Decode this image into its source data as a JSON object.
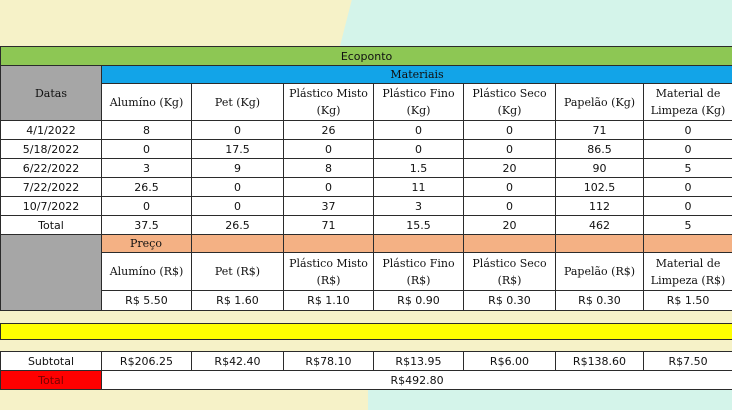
{
  "title": "Ecoponto",
  "materials_header": "Materiais",
  "dates_header": "Datas",
  "quantity_columns": [
    "Alumíno (Kg)",
    "Pet (Kg)",
    "Plástico Misto (Kg)",
    "Plástico Fino (Kg)",
    "Plástico Seco (Kg)",
    "Papelão (Kg)",
    "Material de Limpeza (Kg)"
  ],
  "rows": [
    {
      "date": "4/1/2022",
      "values": [
        "8",
        "0",
        "26",
        "0",
        "0",
        "71",
        "0"
      ]
    },
    {
      "date": "5/18/2022",
      "values": [
        "0",
        "17.5",
        "0",
        "0",
        "0",
        "86.5",
        "0"
      ]
    },
    {
      "date": "6/22/2022",
      "values": [
        "3",
        "9",
        "8",
        "1.5",
        "20",
        "90",
        "5"
      ]
    },
    {
      "date": "7/22/2022",
      "values": [
        "26.5",
        "0",
        "0",
        "11",
        "0",
        "102.5",
        "0"
      ]
    },
    {
      "date": "10/7/2022",
      "values": [
        "0",
        "0",
        "37",
        "3",
        "0",
        "112",
        "0"
      ]
    }
  ],
  "total_row": {
    "label": "Total",
    "values": [
      "37.5",
      "26.5",
      "71",
      "15.5",
      "20",
      "462",
      "5"
    ]
  },
  "price_header": "Preço",
  "price_columns": [
    "Alumíno (R$)",
    "Pet (R$)",
    "Plástico Misto (R$)",
    "Plástico Fino (R$)",
    "Plástico Seco (R$)",
    "Papelão (R$)",
    "Material de Limpeza (R$)"
  ],
  "prices": [
    "R$ 5.50",
    "R$ 1.60",
    "R$ 1.10",
    "R$ 0.90",
    "R$ 0.30",
    "R$ 0.30",
    "R$ 1.50"
  ],
  "subtotal": {
    "label": "Subtotal",
    "values": [
      "R$206.25",
      "R$42.40",
      "R$78.10",
      "R$13.95",
      "R$6.00",
      "R$138.60",
      "R$7.50"
    ]
  },
  "grand_total": {
    "label": "Total",
    "value": "R$492.80"
  },
  "colors": {
    "title_bar": "#8dc754",
    "materials_bar": "#12a4e8",
    "dates_cell": "#a6a6a6",
    "price_bar": "#f4b184",
    "separator": "#ffff00",
    "total_label": "#ff0000"
  }
}
